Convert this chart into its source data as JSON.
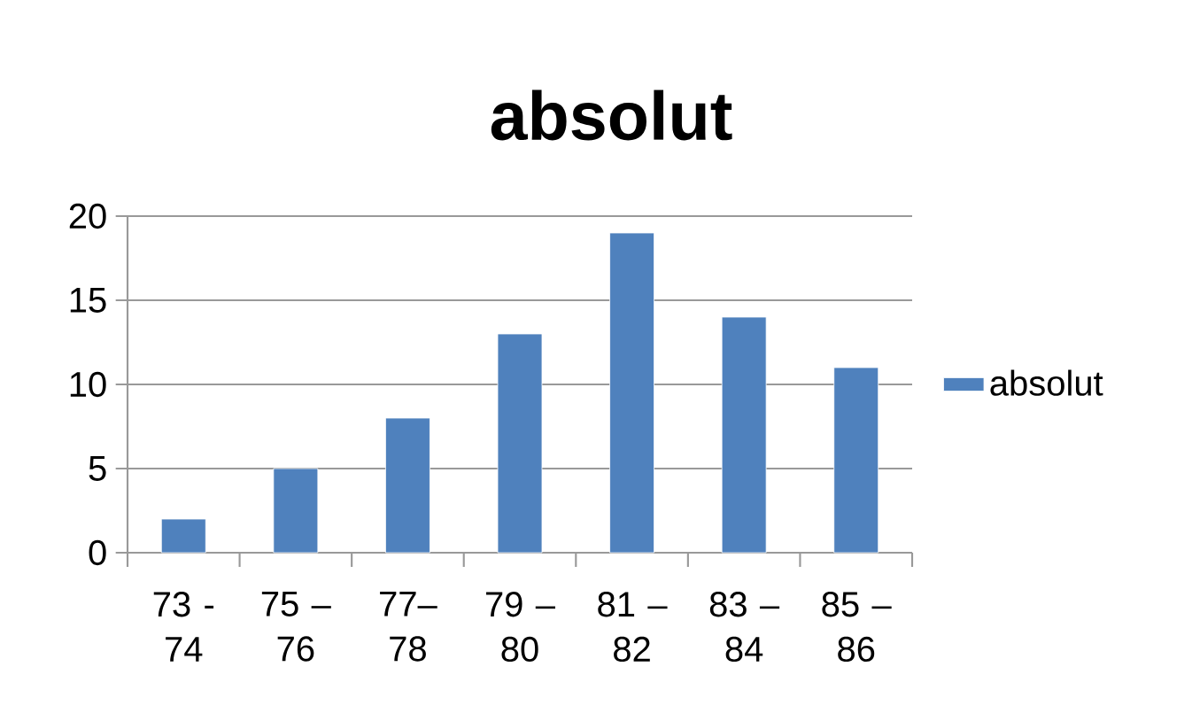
{
  "chart_data": {
    "type": "bar",
    "title": "absolut",
    "categories": [
      "73 - 74",
      "75 – 76",
      "77– 78",
      "79 – 80",
      "81 – 82",
      "83 – 84",
      "85 – 86"
    ],
    "series": [
      {
        "name": "absolut",
        "color": "#4f81bd",
        "values": [
          2,
          5,
          8,
          13,
          19,
          14,
          11
        ]
      }
    ],
    "ylim": [
      0,
      20
    ],
    "yticks": [
      0,
      5,
      10,
      15,
      20
    ],
    "grid": "y",
    "legend": "right"
  }
}
